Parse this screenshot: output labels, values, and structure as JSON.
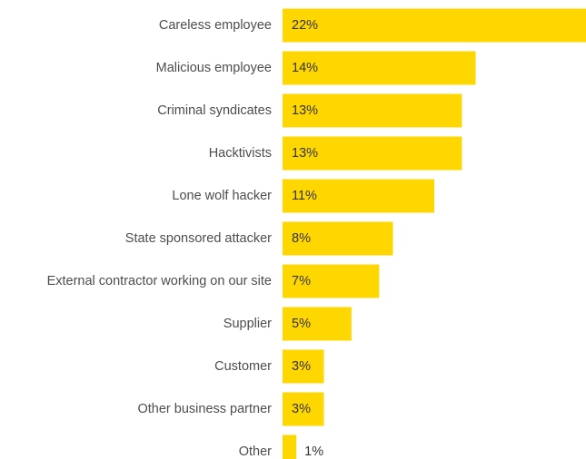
{
  "chart_data": {
    "type": "bar",
    "orientation": "horizontal",
    "categories": [
      "Careless employee",
      "Malicious employee",
      "Criminal syndicates",
      "Hacktivists",
      "Lone wolf hacker",
      "State sponsored attacker",
      "External contractor working on our site",
      "Supplier",
      "Customer",
      "Other business partner",
      "Other"
    ],
    "values": [
      22,
      14,
      13,
      13,
      11,
      8,
      7,
      5,
      3,
      3,
      1
    ],
    "value_labels": [
      "22%",
      "14%",
      "13%",
      "13%",
      "11%",
      "8%",
      "7%",
      "5%",
      "3%",
      "3%",
      "1%"
    ],
    "xlim": [
      0,
      22
    ],
    "grid": false,
    "bar_color": "#FFD700",
    "title": "",
    "xlabel": "",
    "ylabel": ""
  }
}
